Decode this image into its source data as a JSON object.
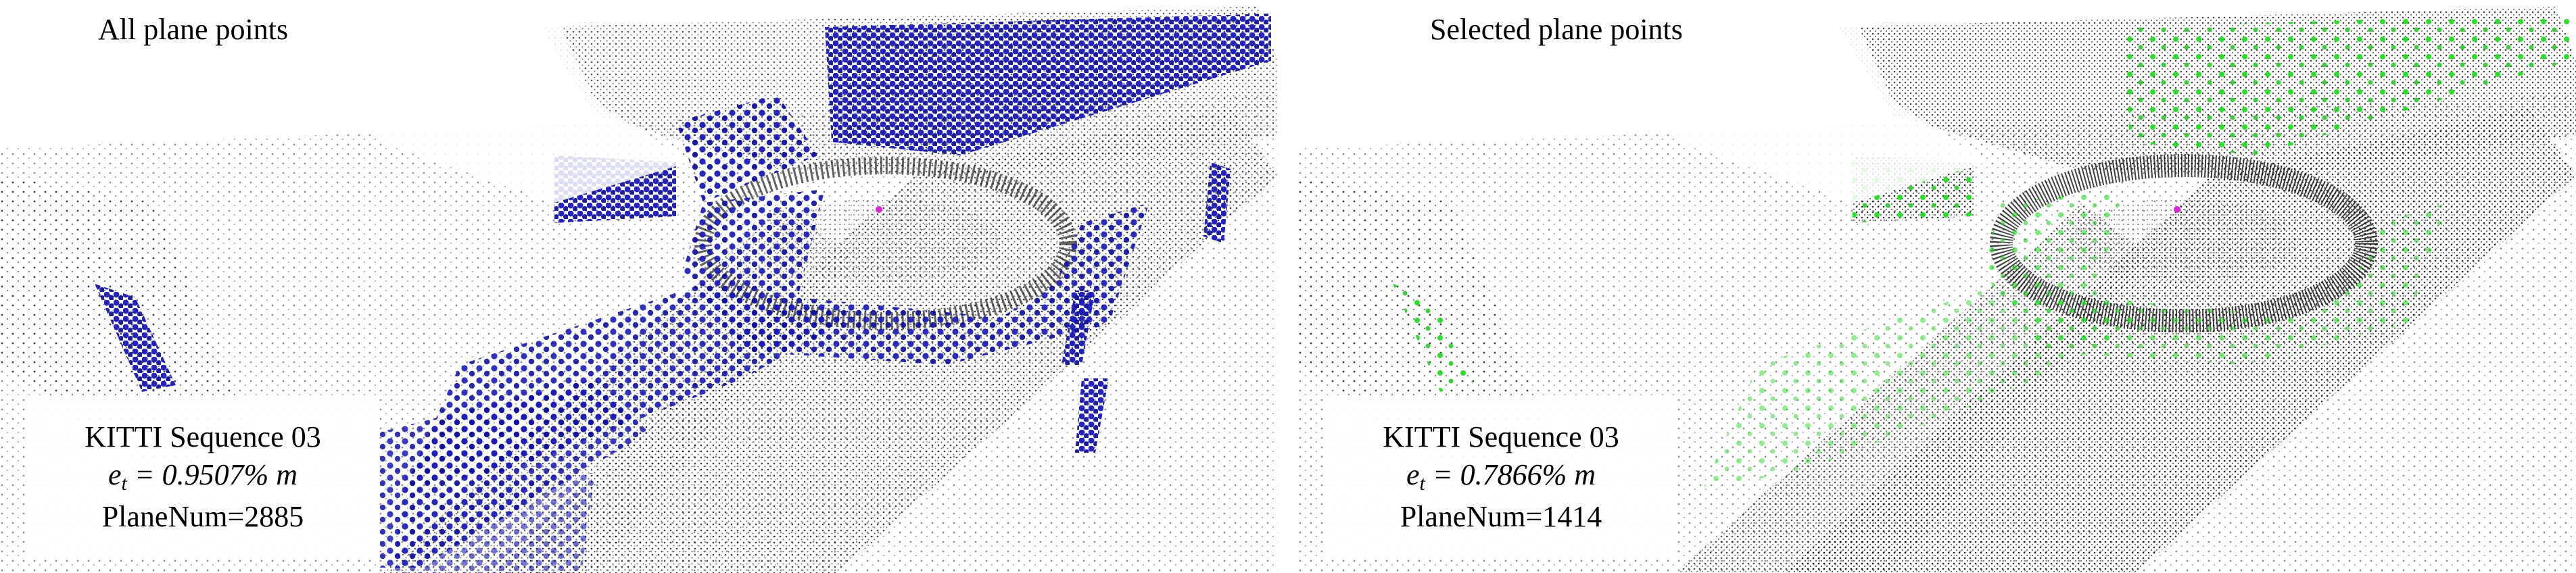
{
  "panels": [
    {
      "title": "All plane points",
      "sequence": "KITTI Sequence 03",
      "metric_symbol": "e",
      "metric_sub": "t",
      "metric_eq": " = ",
      "metric_value": "0.9507%",
      "metric_unit": " m",
      "plane_num": "PlaneNum=2885",
      "highlight_color": "#1a1ab8"
    },
    {
      "title": "Selected plane points",
      "sequence": "KITTI Sequence 03",
      "metric_symbol": "e",
      "metric_sub": "t",
      "metric_eq": " = ",
      "metric_value": "0.7866%",
      "metric_unit": " m",
      "plane_num": "PlaneNum=1414",
      "highlight_color": "#22dd22"
    }
  ],
  "colors": {
    "background": "#ffffff",
    "point_cloud": "#1a1a1a",
    "left_highlight": "#1a1ab8",
    "right_highlight": "#22dd22",
    "marker": "#d52bd5"
  }
}
